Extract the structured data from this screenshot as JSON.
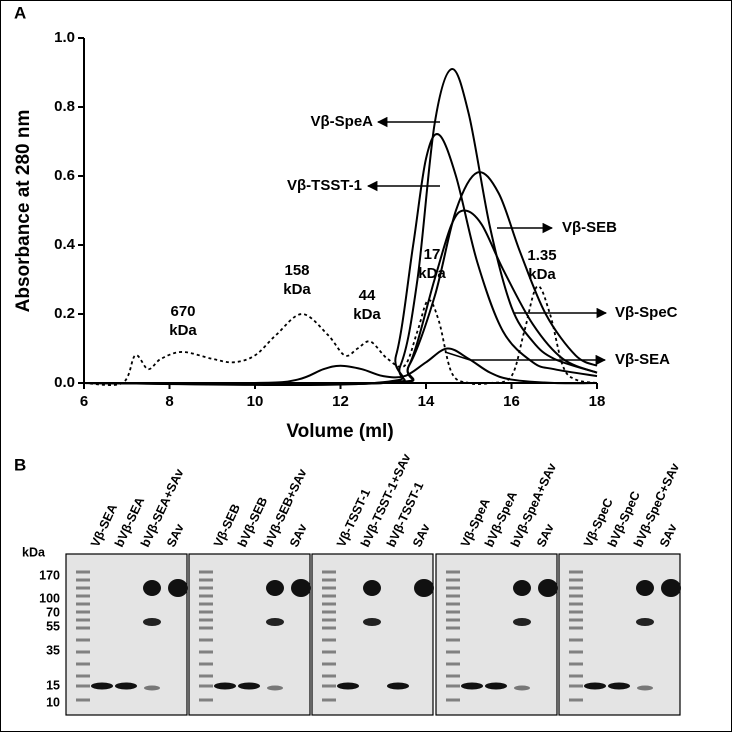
{
  "panel_labels": [
    "A",
    "B"
  ],
  "chart_data": {
    "type": "line",
    "xlabel": "Volume (ml)",
    "ylabel": "Absorbance at 280 nm",
    "xlim": [
      6,
      18
    ],
    "ylim": [
      0,
      1.0
    ],
    "xticks": [
      6,
      8,
      10,
      12,
      14,
      16,
      18
    ],
    "yticks": [
      {
        "value": 0,
        "label": "0.0"
      },
      0.2,
      0.4,
      0.6,
      0.8,
      {
        "value": 1.0,
        "label": "1.0"
      }
    ],
    "series": [
      {
        "name": "Vβ-SpeA",
        "color": "#000000",
        "style": "solid",
        "x": [
          6,
          12.8,
          13.4,
          13.8,
          14.2,
          14.6,
          15.0,
          15.5,
          16,
          16.5,
          17,
          18
        ],
        "values": [
          0,
          0,
          0.05,
          0.3,
          0.75,
          0.91,
          0.78,
          0.45,
          0.22,
          0.12,
          0.07,
          0.03
        ]
      },
      {
        "name": "Vβ-TSST-1",
        "color": "#000000",
        "style": "solid",
        "x": [
          6,
          12.8,
          13.3,
          13.7,
          14.0,
          14.3,
          14.7,
          15.2,
          15.8,
          16.5,
          17,
          18
        ],
        "values": [
          0,
          0,
          0.08,
          0.4,
          0.65,
          0.72,
          0.6,
          0.35,
          0.15,
          0.06,
          0.04,
          0.02
        ]
      },
      {
        "name": "Vβ-SEB",
        "color": "#000000",
        "style": "solid",
        "x": [
          6,
          13,
          13.6,
          14.2,
          14.7,
          15.2,
          15.7,
          16.2,
          16.8,
          17.5,
          18
        ],
        "values": [
          0,
          0,
          0.05,
          0.25,
          0.5,
          0.61,
          0.55,
          0.38,
          0.2,
          0.08,
          0.05
        ]
      },
      {
        "name": "Vβ-SpeC",
        "color": "#000000",
        "style": "solid",
        "x": [
          6,
          13,
          13.6,
          14.2,
          14.6,
          14.9,
          15.3,
          15.8,
          16.5,
          17.2,
          18
        ],
        "values": [
          0,
          0,
          0.05,
          0.3,
          0.46,
          0.5,
          0.46,
          0.33,
          0.17,
          0.07,
          0.03
        ]
      },
      {
        "name": "Vβ-SEA",
        "color": "#000000",
        "style": "solid",
        "x": [
          6,
          10,
          11,
          11.6,
          12,
          12.5,
          13,
          13.5,
          14,
          14.5,
          15,
          15.5,
          16,
          17,
          18
        ],
        "values": [
          0,
          0,
          0.01,
          0.04,
          0.05,
          0.04,
          0.02,
          0.02,
          0.06,
          0.1,
          0.07,
          0.03,
          0.01,
          0,
          0
        ]
      },
      {
        "color": "#000000",
        "style": "dotted",
        "x": [
          6,
          6.9,
          7.2,
          7.5,
          7.8,
          8.3,
          9,
          9.5,
          10,
          10.5,
          11.1,
          11.7,
          12.1,
          12.4,
          12.7,
          13.1,
          13.5,
          13.8,
          14.05,
          14.3,
          14.6,
          15,
          15.5,
          16,
          16.3,
          16.6,
          16.9,
          17.2,
          17.5,
          18
        ],
        "values": [
          0,
          0,
          0.08,
          0.04,
          0.07,
          0.09,
          0.07,
          0.06,
          0.08,
          0.14,
          0.2,
          0.14,
          0.08,
          0.1,
          0.12,
          0.07,
          0.05,
          0.15,
          0.24,
          0.18,
          0.03,
          0,
          0,
          0.02,
          0.15,
          0.28,
          0.2,
          0.05,
          0.01,
          0
        ]
      }
    ],
    "annotations": [
      [
        "670",
        "kDa"
      ],
      [
        "158",
        "kDa"
      ],
      [
        "44",
        "kDa"
      ],
      [
        "17",
        "kDa"
      ],
      [
        "1.35",
        "kDa"
      ]
    ]
  },
  "gel": {
    "unit": "kDa",
    "markers": [
      "170",
      "100",
      "70",
      "55",
      "35",
      "15",
      "10"
    ],
    "panels": [
      {
        "lanes": [
          "Vβ-SEA",
          "bVβ-SEA",
          "bVβ-SEA+SAv",
          "SAv"
        ]
      },
      {
        "lanes": [
          "Vβ-SEB",
          "bVβ-SEB",
          "bVβ-SEB+SAv",
          "SAv"
        ]
      },
      {
        "lanes": [
          "Vβ-TSST-1",
          "bVβ-TSST-1+SAv",
          "bVβ-TSST-1",
          "SAv"
        ]
      },
      {
        "lanes": [
          "Vβ-SpeA",
          "bVβ-SpeA",
          "bVβ-SpeA+SAv",
          "SAv"
        ]
      },
      {
        "lanes": [
          "Vβ-SpeC",
          "bVβ-SpeC",
          "bVβ-SpeC+SAv",
          "SAv"
        ]
      }
    ]
  }
}
